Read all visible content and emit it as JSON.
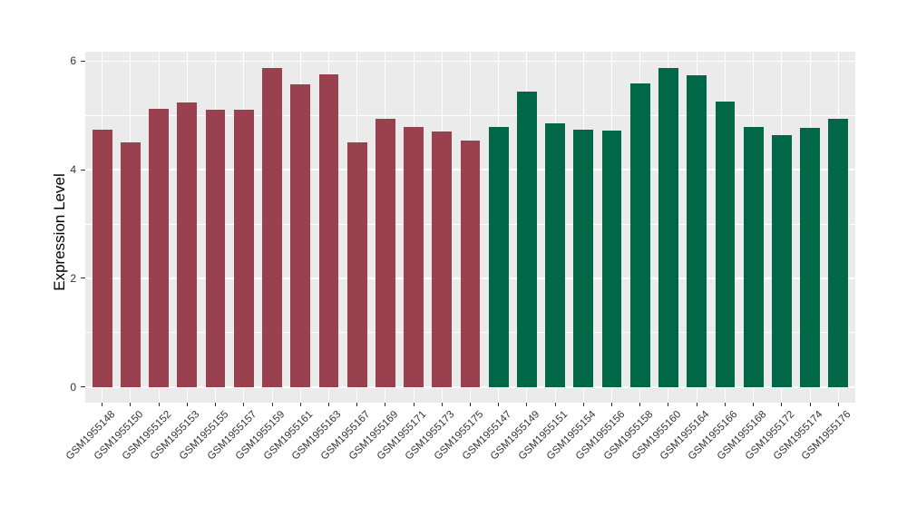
{
  "chart_data": {
    "type": "bar",
    "title": "",
    "xlabel": "",
    "ylabel": "Expression Level",
    "yticks": [
      0,
      2,
      4,
      6
    ],
    "yminor": [
      1,
      3,
      5
    ],
    "ylim": [
      -0.3,
      6.17
    ],
    "grid": true,
    "legend": false,
    "panel_bg": "#EBEBEB",
    "grid_color": "#FFFFFF",
    "axis_text_color": "#333333",
    "groups": [
      {
        "color": "#9A4150"
      },
      {
        "color": "#006747"
      }
    ],
    "categories": [
      "GSM1955148",
      "GSM1955150",
      "GSM1955152",
      "GSM1955153",
      "GSM1955155",
      "GSM1955157",
      "GSM1955159",
      "GSM1955161",
      "GSM1955163",
      "GSM1955167",
      "GSM1955169",
      "GSM1955171",
      "GSM1955173",
      "GSM1955175",
      "GSM1955147",
      "GSM1955149",
      "GSM1955151",
      "GSM1955154",
      "GSM1955156",
      "GSM1955158",
      "GSM1955160",
      "GSM1955164",
      "GSM1955166",
      "GSM1955168",
      "GSM1955172",
      "GSM1955174",
      "GSM1955176"
    ],
    "values": [
      4.74,
      4.51,
      5.12,
      5.23,
      5.1,
      5.1,
      5.87,
      5.57,
      5.75,
      4.5,
      4.94,
      4.79,
      4.71,
      4.53,
      4.79,
      5.44,
      4.86,
      4.74,
      4.72,
      5.59,
      5.88,
      5.73,
      5.25,
      4.79,
      4.64,
      4.77,
      4.93
    ],
    "group_index": [
      0,
      0,
      0,
      0,
      0,
      0,
      0,
      0,
      0,
      0,
      0,
      0,
      0,
      0,
      1,
      1,
      1,
      1,
      1,
      1,
      1,
      1,
      1,
      1,
      1,
      1,
      1
    ]
  }
}
